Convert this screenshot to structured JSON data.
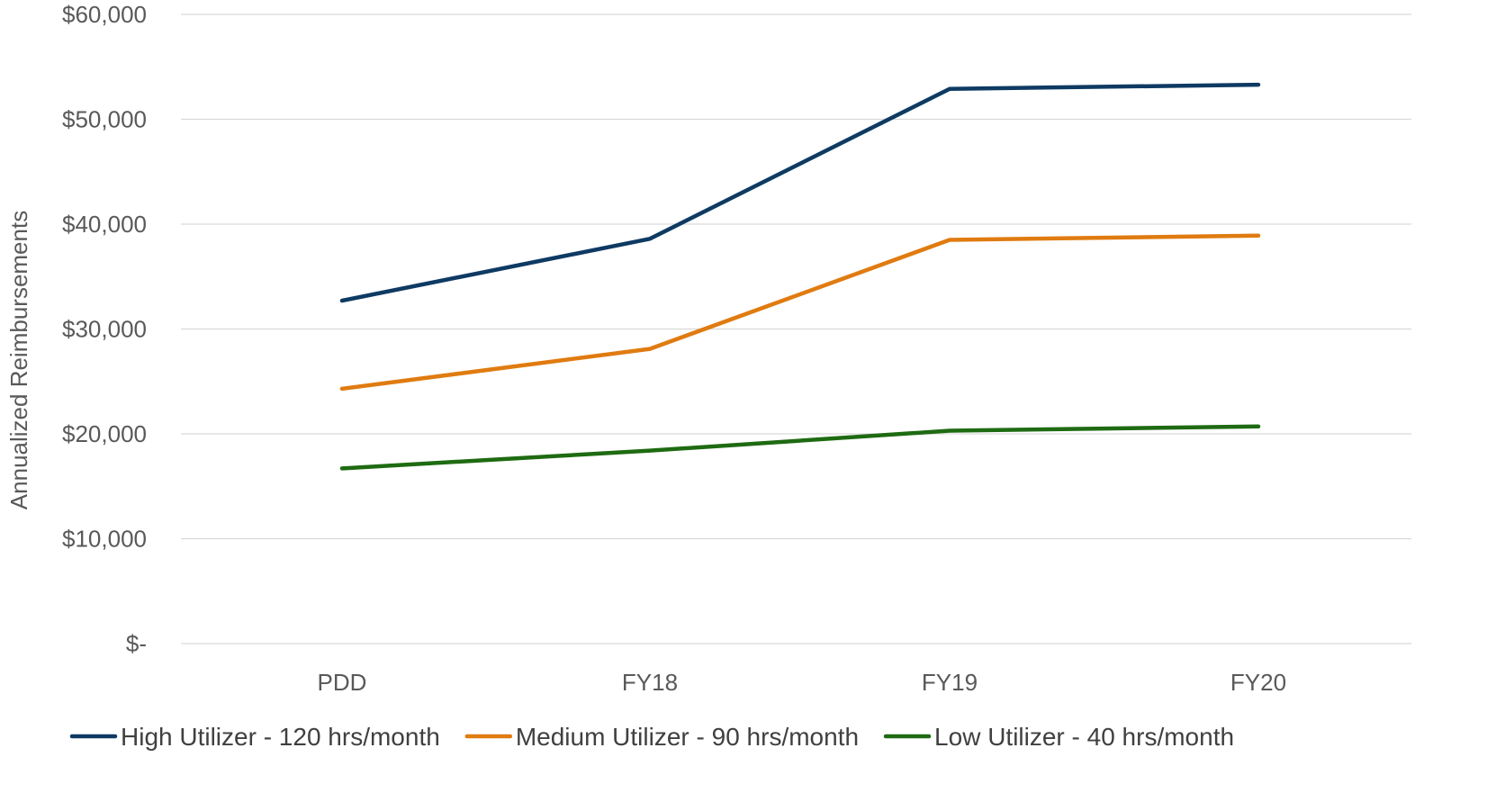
{
  "chart_data": {
    "type": "line",
    "title": "",
    "xlabel": "",
    "ylabel": "Annualized Reimbursements",
    "categories": [
      "PDD",
      "FY18",
      "FY19",
      "FY20"
    ],
    "ylim": [
      0,
      60000
    ],
    "yticks": [
      0,
      10000,
      20000,
      30000,
      40000,
      50000,
      60000
    ],
    "ytick_labels": [
      "$-",
      "$10,000",
      "$20,000",
      "$30,000",
      "$40,000",
      "$50,000",
      "$60,000"
    ],
    "grid": true,
    "legend_position": "bottom",
    "series": [
      {
        "name": "High Utilizer - 120 hrs/month",
        "color": "#0e3a63",
        "values": [
          32700,
          38600,
          52900,
          53300
        ]
      },
      {
        "name": "Medium Utilizer - 90 hrs/month",
        "color": "#e07b10",
        "values": [
          24300,
          28100,
          38500,
          38900
        ]
      },
      {
        "name": "Low Utilizer - 40 hrs/month",
        "color": "#1e6b12",
        "values": [
          16700,
          18400,
          20300,
          20700
        ]
      }
    ]
  }
}
